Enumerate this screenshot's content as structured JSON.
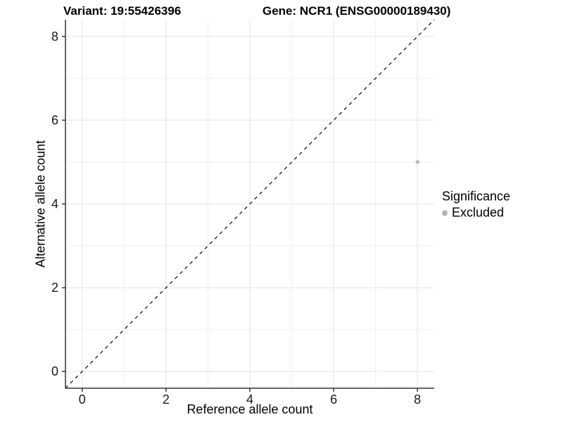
{
  "header": {
    "variant_title": "Variant: 19:55426396",
    "gene_title": "Gene: NCR1 (ENSG00000189430)"
  },
  "chart_data": {
    "type": "scatter",
    "xlabel": "Reference allele count",
    "ylabel": "Alternative allele count",
    "xlim": [
      -0.4,
      8.4
    ],
    "ylim": [
      -0.4,
      8.4
    ],
    "x_ticks": [
      0,
      2,
      4,
      6,
      8
    ],
    "y_ticks": [
      0,
      2,
      4,
      6,
      8
    ],
    "x_minor_ticks": [
      1,
      3,
      5,
      7
    ],
    "y_minor_ticks": [
      1,
      3,
      5,
      7
    ],
    "grid": true,
    "legend_position": "right",
    "reference_line": {
      "type": "identity",
      "style": "dashed",
      "from": [
        -0.4,
        -0.4
      ],
      "to": [
        8.4,
        8.4
      ],
      "color": "#000000"
    },
    "series": [
      {
        "name": "Excluded",
        "color": "#b3b3b3",
        "points": [
          {
            "x": 8,
            "y": 5
          }
        ]
      }
    ],
    "legend": {
      "title": "Significance",
      "items": [
        {
          "label": "Excluded",
          "color": "#b3b3b3"
        }
      ]
    }
  },
  "colors": {
    "background": "#ffffff",
    "axis_line": "#333333",
    "tick_mark": "#333333",
    "grid_major": "#e4e4e4",
    "grid_minor": "#f0f0f0",
    "point": "#b3b3b3",
    "text": "#000000"
  }
}
